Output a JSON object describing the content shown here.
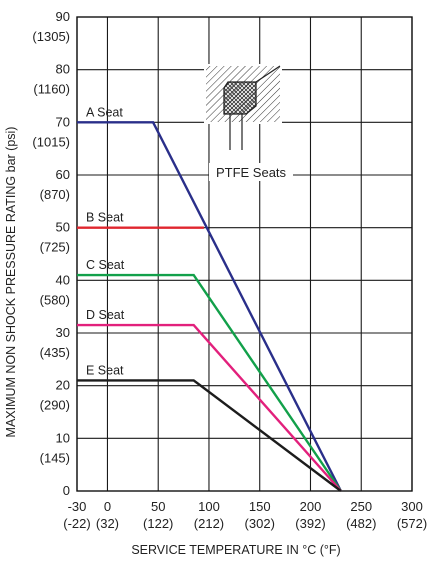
{
  "chart_data": {
    "type": "line",
    "xlabel": "SERVICE TEMPERATURE  IN  °C (°F)",
    "ylabel": "MAXIMUM NON SHOCK PRESSURE RATING bar (psi)",
    "xlim": [
      -30,
      300
    ],
    "ylim": [
      0,
      90
    ],
    "grid": true,
    "x_ticks": [
      {
        "value": -30,
        "label": "-30",
        "sub": "(-22)"
      },
      {
        "value": 0,
        "label": "0",
        "sub": "(32)"
      },
      {
        "value": 50,
        "label": "50",
        "sub": "(122)"
      },
      {
        "value": 100,
        "label": "100",
        "sub": "(212)"
      },
      {
        "value": 150,
        "label": "150",
        "sub": "(302)"
      },
      {
        "value": 200,
        "label": "200",
        "sub": "(392)"
      },
      {
        "value": 250,
        "label": "250",
        "sub": "(482)"
      },
      {
        "value": 300,
        "label": "300",
        "sub": "(572)"
      }
    ],
    "y_ticks": [
      {
        "value": 0,
        "label": "0",
        "sub": ""
      },
      {
        "value": 10,
        "label": "10",
        "sub": "(145)"
      },
      {
        "value": 20,
        "label": "20",
        "sub": "(290)"
      },
      {
        "value": 30,
        "label": "30",
        "sub": "(435)"
      },
      {
        "value": 40,
        "label": "40",
        "sub": "(580)"
      },
      {
        "value": 50,
        "label": "50",
        "sub": "(725)"
      },
      {
        "value": 60,
        "label": "60",
        "sub": "(870)"
      },
      {
        "value": 70,
        "label": "70",
        "sub": "(1015)"
      },
      {
        "value": 80,
        "label": "80",
        "sub": "(1160)"
      },
      {
        "value": 90,
        "label": "90",
        "sub": "(1305)"
      }
    ],
    "series": [
      {
        "name": "A Seat",
        "color": "#2a2f8a",
        "points": [
          [
            -30,
            70
          ],
          [
            45,
            70
          ],
          [
            230,
            0
          ]
        ]
      },
      {
        "name": "B Seat",
        "color": "#e0262e",
        "points": [
          [
            -30,
            50
          ],
          [
            95,
            50
          ]
        ]
      },
      {
        "name": "C Seat",
        "color": "#12a04a",
        "points": [
          [
            -30,
            41
          ],
          [
            85,
            41
          ],
          [
            230,
            0
          ]
        ]
      },
      {
        "name": "D Seat",
        "color": "#e2207c",
        "points": [
          [
            -30,
            31.5
          ],
          [
            85,
            31.5
          ],
          [
            230,
            0
          ]
        ]
      },
      {
        "name": "E Seat",
        "color": "#1c1c1c",
        "points": [
          [
            -30,
            21
          ],
          [
            85,
            21
          ],
          [
            230,
            0
          ]
        ]
      }
    ],
    "annotations": [
      {
        "text": "PTFE Seats"
      }
    ]
  }
}
